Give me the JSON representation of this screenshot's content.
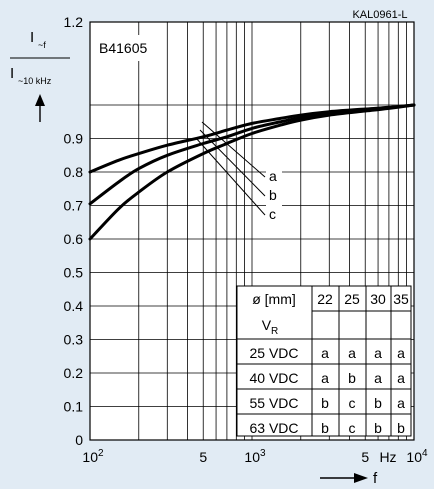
{
  "colors": {
    "background": "#e1ebf4",
    "plot_background": "#ffffff",
    "ink": "#000000"
  },
  "doc_id": "KAL0961-L",
  "part_number": "B41605",
  "y_label": {
    "main": "I",
    "sub": "~f",
    "denom_main": "I",
    "denom_sub": "~10 kHz"
  },
  "x_label": "f",
  "x_axis_unit": "Hz",
  "y_ticks": [
    "0",
    "0.1",
    "0.2",
    "0.3",
    "0.4",
    "0.5",
    "0.6",
    "0.7",
    "0.8",
    "0.9",
    "1.2"
  ],
  "x_ticks": [
    {
      "base": "10",
      "exp": "2",
      "value": 100
    },
    {
      "base": "5",
      "exp": "",
      "value": 500
    },
    {
      "base": "10",
      "exp": "3",
      "value": 1000
    },
    {
      "base": "5",
      "exp": "",
      "value": 5000
    },
    {
      "base": "10",
      "exp": "4",
      "value": 10000
    }
  ],
  "curve_labels": [
    "a",
    "b",
    "c"
  ],
  "table": {
    "header": [
      "ø [mm]",
      "22",
      "25",
      "30",
      "35"
    ],
    "subheader": "V",
    "subheader_sub": "R",
    "rows": [
      [
        "25 VDC",
        "a",
        "a",
        "a",
        "a"
      ],
      [
        "40 VDC",
        "a",
        "b",
        "a",
        "a"
      ],
      [
        "55 VDC",
        "b",
        "c",
        "b",
        "a"
      ],
      [
        "63 VDC",
        "b",
        "c",
        "b",
        "b"
      ]
    ]
  },
  "chart_data": {
    "type": "line",
    "title": "B41605",
    "xlabel": "f",
    "ylabel": "I~f / I~10 kHz",
    "x_scale": "log",
    "xlim": [
      100,
      10000
    ],
    "ylim": [
      0,
      1.2
    ],
    "y_axis_break": "between 1.0 and 1.2",
    "series": [
      {
        "name": "a",
        "x": [
          100,
          150,
          200,
          300,
          500,
          700,
          1000,
          1500,
          2000,
          3000,
          5000,
          7000,
          10000
        ],
        "values": [
          0.8,
          0.835,
          0.855,
          0.88,
          0.905,
          0.925,
          0.945,
          0.96,
          0.97,
          0.98,
          0.988,
          0.993,
          1.0
        ]
      },
      {
        "name": "b",
        "x": [
          100,
          150,
          200,
          300,
          500,
          700,
          1000,
          1500,
          2000,
          3000,
          5000,
          7000,
          10000
        ],
        "values": [
          0.705,
          0.77,
          0.81,
          0.85,
          0.885,
          0.905,
          0.93,
          0.95,
          0.962,
          0.975,
          0.985,
          0.992,
          1.0
        ]
      },
      {
        "name": "c",
        "x": [
          100,
          150,
          200,
          300,
          500,
          700,
          1000,
          1500,
          2000,
          3000,
          5000,
          7000,
          10000
        ],
        "values": [
          0.6,
          0.69,
          0.74,
          0.8,
          0.855,
          0.885,
          0.915,
          0.94,
          0.955,
          0.97,
          0.982,
          0.99,
          1.0
        ]
      }
    ]
  }
}
